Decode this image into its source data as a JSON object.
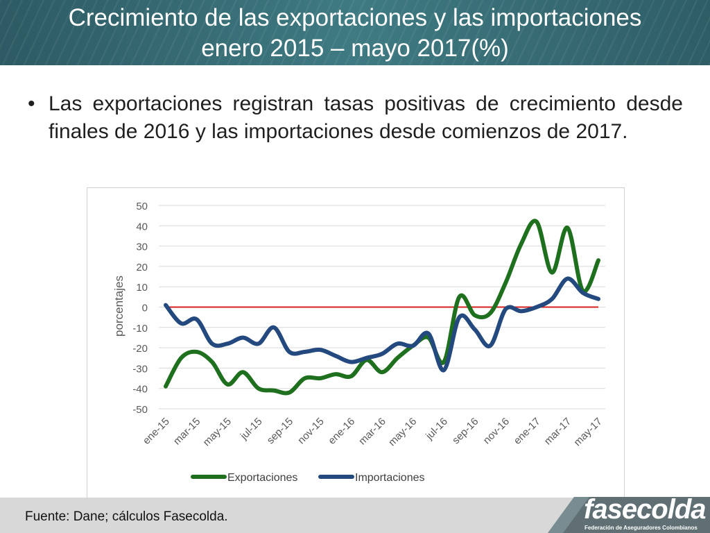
{
  "slide": {
    "title_line1": "Crecimiento de las exportaciones y las importaciones",
    "title_line2": "enero 2015 – mayo 2017(%)",
    "bullet_marker": "•",
    "bullet_text": "Las exportaciones registran tasas positivas de crecimiento desde finales de 2016 y las importaciones desde comienzos de 2017.",
    "source": "Fuente: Dane; cálculos Fasecolda.",
    "logo_text": "fasecolda",
    "logo_subtext": "Federación de Aseguradores Colombianos"
  },
  "colors": {
    "header": "#3b7179",
    "exportaciones": "#1e6f1e",
    "importaciones": "#24497e",
    "zero_line": "#d42020",
    "footer": "#d8d8d8"
  },
  "chart_data": {
    "type": "line",
    "ylabel": "porcentajes",
    "xlabel": "",
    "ylim": [
      -50,
      50
    ],
    "yticks": [
      50,
      40,
      30,
      20,
      10,
      0,
      -10,
      -20,
      -30,
      -40,
      -50
    ],
    "grid": true,
    "legend": "bottom",
    "x": [
      "ene-15",
      "feb-15",
      "mar-15",
      "abr-15",
      "may-15",
      "jun-15",
      "jul-15",
      "ago-15",
      "sep-15",
      "oct-15",
      "nov-15",
      "dic-15",
      "ene-16",
      "feb-16",
      "mar-16",
      "abr-16",
      "may-16",
      "jun-16",
      "jul-16",
      "ago-16",
      "sep-16",
      "oct-16",
      "nov-16",
      "dic-16",
      "ene-17",
      "feb-17",
      "mar-17",
      "abr-17",
      "may-17"
    ],
    "tick_labels": [
      "ene-15",
      "mar-15",
      "may-15",
      "jul-15",
      "sep-15",
      "nov-15",
      "ene-16",
      "mar-16",
      "may-16",
      "jul-16",
      "sep-16",
      "nov-16",
      "ene-17",
      "mar-17",
      "may-17"
    ],
    "series": [
      {
        "name": "Exportaciones",
        "values": [
          -39,
          -25,
          -22,
          -27,
          -38,
          -32,
          -40,
          -41,
          -42,
          -35,
          -35,
          -33,
          -34,
          -26,
          -32,
          -25,
          -19,
          -15,
          -27,
          5,
          -4,
          -3,
          12,
          31,
          42,
          17,
          39,
          8,
          23
        ]
      },
      {
        "name": "Importaciones",
        "values": [
          1,
          -8,
          -6,
          -18,
          -18,
          -15,
          -18,
          -10,
          -22,
          -22,
          -21,
          -24,
          -27,
          -25,
          -23,
          -18,
          -19,
          -13,
          -31,
          -5,
          -11,
          -19,
          -1,
          -2,
          0,
          4,
          14,
          7,
          4
        ]
      }
    ],
    "reference_line": 0
  }
}
